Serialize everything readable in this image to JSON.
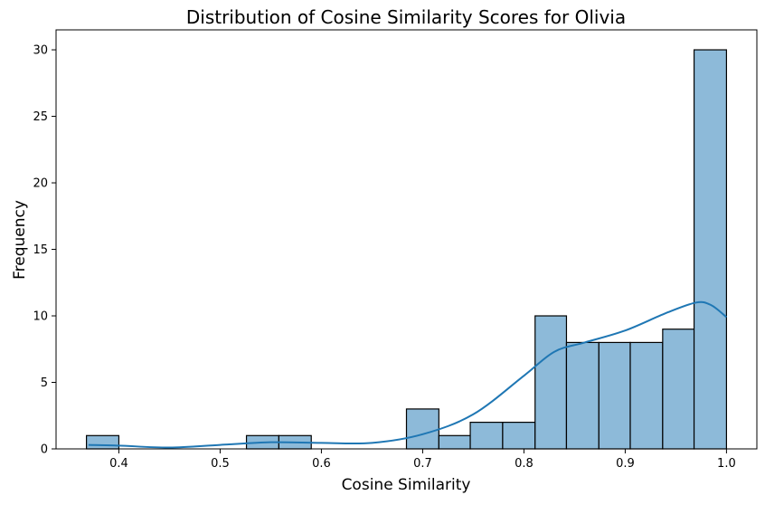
{
  "chart_data": {
    "type": "histogram",
    "title": "Distribution of Cosine Similarity Scores for Olivia",
    "xlabel": "Cosine Similarity",
    "ylabel": "Frequency",
    "xlim": [
      0.338,
      1.03
    ],
    "ylim": [
      0,
      31.5
    ],
    "xticks": [
      0.4,
      0.5,
      0.6,
      0.7,
      0.8,
      0.9,
      1.0
    ],
    "xtick_labels": [
      "0.4",
      "0.5",
      "0.6",
      "0.7",
      "0.8",
      "0.9",
      "1.0"
    ],
    "yticks": [
      0,
      5,
      10,
      15,
      20,
      25,
      30
    ],
    "ytick_labels": [
      "0",
      "5",
      "10",
      "15",
      "20",
      "25",
      "30"
    ],
    "grid": false,
    "bar_color": "#8dbad9",
    "edge_color": "#000000",
    "kde_color": "#1f77b4",
    "bins": [
      {
        "x0": 0.368,
        "x1": 0.4,
        "count": 1
      },
      {
        "x0": 0.4,
        "x1": 0.432,
        "count": 0
      },
      {
        "x0": 0.432,
        "x1": 0.463,
        "count": 0
      },
      {
        "x0": 0.463,
        "x1": 0.495,
        "count": 0
      },
      {
        "x0": 0.495,
        "x1": 0.526,
        "count": 0
      },
      {
        "x0": 0.526,
        "x1": 0.558,
        "count": 1
      },
      {
        "x0": 0.558,
        "x1": 0.59,
        "count": 1
      },
      {
        "x0": 0.59,
        "x1": 0.621,
        "count": 0
      },
      {
        "x0": 0.621,
        "x1": 0.653,
        "count": 0
      },
      {
        "x0": 0.653,
        "x1": 0.684,
        "count": 0
      },
      {
        "x0": 0.684,
        "x1": 0.716,
        "count": 3
      },
      {
        "x0": 0.716,
        "x1": 0.747,
        "count": 1
      },
      {
        "x0": 0.747,
        "x1": 0.779,
        "count": 2
      },
      {
        "x0": 0.779,
        "x1": 0.811,
        "count": 2
      },
      {
        "x0": 0.811,
        "x1": 0.842,
        "count": 10
      },
      {
        "x0": 0.842,
        "x1": 0.874,
        "count": 8
      },
      {
        "x0": 0.874,
        "x1": 0.905,
        "count": 8
      },
      {
        "x0": 0.905,
        "x1": 0.937,
        "count": 8
      },
      {
        "x0": 0.937,
        "x1": 0.968,
        "count": 9
      },
      {
        "x0": 0.968,
        "x1": 1.0,
        "count": 30
      }
    ],
    "kde": {
      "x": [
        0.37,
        0.4,
        0.45,
        0.5,
        0.55,
        0.6,
        0.65,
        0.7,
        0.75,
        0.8,
        0.83,
        0.86,
        0.9,
        0.94,
        0.97,
        0.985,
        1.0
      ],
      "y": [
        0.3,
        0.25,
        0.1,
        0.3,
        0.5,
        0.45,
        0.45,
        1.1,
        2.6,
        5.5,
        7.3,
        8.0,
        8.9,
        10.2,
        11.0,
        10.8,
        9.9
      ]
    }
  }
}
